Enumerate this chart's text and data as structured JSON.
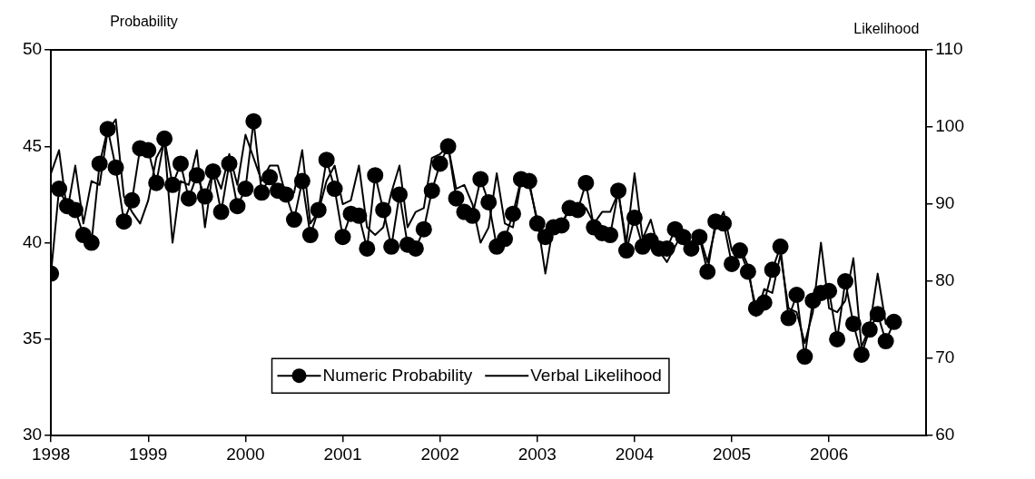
{
  "chart_data": {
    "type": "line",
    "ylabel": "Probability",
    "y2label": "Likelihood",
    "x": [
      "1998-01",
      "1998-02",
      "1998-03",
      "1998-04",
      "1998-05",
      "1998-06",
      "1998-07",
      "1998-08",
      "1998-09",
      "1998-10",
      "1998-11",
      "1998-12",
      "1999-01",
      "1999-02",
      "1999-03",
      "1999-04",
      "1999-05",
      "1999-06",
      "1999-07",
      "1999-08",
      "1999-09",
      "1999-10",
      "1999-11",
      "1999-12",
      "2000-01",
      "2000-02",
      "2000-03",
      "2000-04",
      "2000-05",
      "2000-06",
      "2000-07",
      "2000-08",
      "2000-09",
      "2000-10",
      "2000-11",
      "2000-12",
      "2001-01",
      "2001-02",
      "2001-03",
      "2001-04",
      "2001-05",
      "2001-06",
      "2001-07",
      "2001-08",
      "2001-09",
      "2001-10",
      "2001-11",
      "2001-12",
      "2002-01",
      "2002-02",
      "2002-03",
      "2002-04",
      "2002-05",
      "2002-06",
      "2002-07",
      "2002-08",
      "2002-09",
      "2002-10",
      "2002-11",
      "2002-12",
      "2003-01",
      "2003-02",
      "2003-03",
      "2003-04",
      "2003-05",
      "2003-06",
      "2003-07",
      "2003-08",
      "2003-09",
      "2003-10",
      "2003-11",
      "2003-12",
      "2004-01",
      "2004-02",
      "2004-03",
      "2004-04",
      "2004-05",
      "2004-06",
      "2004-07",
      "2004-08",
      "2004-09",
      "2004-10",
      "2004-11",
      "2004-12",
      "2005-01",
      "2005-02",
      "2005-03",
      "2005-04",
      "2005-05",
      "2005-06",
      "2005-07",
      "2005-08",
      "2005-09",
      "2005-10",
      "2005-11",
      "2005-12",
      "2006-01",
      "2006-02",
      "2006-03",
      "2006-04",
      "2006-05",
      "2006-06",
      "2006-07",
      "2006-08",
      "2006-09"
    ],
    "series": [
      {
        "name": "Numeric Probability",
        "color": "#000000",
        "marker": "circle",
        "values": [
          38.4,
          42.8,
          41.9,
          41.7,
          40.4,
          40.0,
          44.1,
          45.9,
          43.9,
          41.1,
          42.2,
          44.9,
          44.8,
          43.1,
          45.4,
          43.0,
          44.1,
          42.3,
          43.5,
          42.4,
          43.7,
          41.6,
          44.1,
          41.9,
          42.8,
          46.3,
          42.6,
          43.4,
          42.7,
          42.5,
          41.2,
          43.2,
          40.4,
          41.7,
          44.3,
          42.8,
          40.3,
          41.5,
          41.4,
          39.7,
          43.5,
          41.7,
          39.8,
          42.5,
          39.9,
          39.7,
          40.7,
          42.7,
          44.1,
          45.0,
          42.3,
          41.6,
          41.4,
          43.3,
          42.1,
          39.8,
          40.2,
          41.5,
          43.3,
          43.2,
          41.0,
          40.3,
          40.8,
          40.9,
          41.8,
          41.7,
          43.1,
          40.8,
          40.5,
          40.4,
          42.7,
          39.6,
          41.3,
          39.8,
          40.1,
          39.7,
          39.7,
          40.7,
          40.3,
          39.7,
          40.3,
          38.5,
          41.1,
          41.0,
          38.9,
          39.6,
          38.5,
          36.6,
          36.9,
          38.6,
          39.8,
          36.1,
          37.3,
          34.1,
          37.0,
          37.4,
          37.5,
          35.0,
          38.0,
          35.8,
          34.2,
          35.5,
          36.3,
          34.9,
          35.9
        ]
      },
      {
        "name": "Verbal Likelihood",
        "color": "#000000",
        "marker": "none",
        "axis": "y2",
        "values": [
          94,
          97,
          89,
          95,
          87.5,
          93,
          92.5,
          99.5,
          101,
          91,
          89,
          87.5,
          90.5,
          96,
          98,
          85,
          93,
          92.5,
          97,
          87,
          94.5,
          92,
          96.5,
          92.5,
          99,
          96,
          93,
          95,
          95,
          91,
          91.5,
          97,
          87.5,
          89,
          93,
          95,
          90,
          90.5,
          95,
          87,
          86,
          87,
          91.5,
          95,
          87,
          89,
          89.5,
          96,
          96.5,
          97.5,
          92,
          92.5,
          90,
          85,
          87,
          94,
          87.5,
          87,
          93,
          92.5,
          88,
          81,
          87.5,
          87.5,
          89.5,
          89,
          89.5,
          87.5,
          89,
          89,
          91.5,
          85,
          94,
          85.5,
          88,
          84,
          82.5,
          84.5,
          86.5,
          84,
          86,
          82.5,
          87,
          89,
          84,
          84.5,
          82,
          75.5,
          79,
          78.5,
          83.5,
          76.5,
          76,
          72,
          76,
          85,
          76.5,
          76,
          77.5,
          83,
          71.5,
          74,
          81,
          74.5,
          75
        ]
      }
    ],
    "xlim": [
      "1998",
      "2007"
    ],
    "xticks": [
      "1998",
      "1999",
      "2000",
      "2001",
      "2002",
      "2003",
      "2004",
      "2005",
      "2006"
    ],
    "ylim": [
      30,
      50
    ],
    "yticks": [
      30,
      35,
      40,
      45,
      50
    ],
    "y2lim": [
      60,
      110
    ],
    "y2ticks": [
      60,
      70,
      80,
      90,
      100,
      110
    ],
    "grid": false,
    "legend": "bottom"
  }
}
